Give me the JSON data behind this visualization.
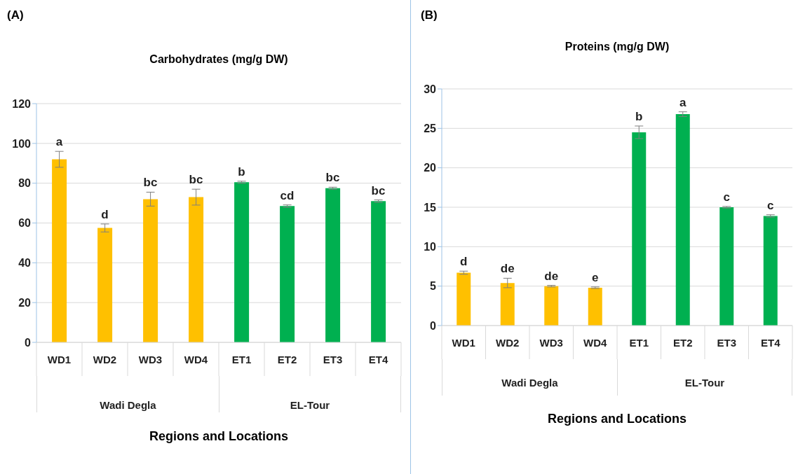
{
  "chart_data": [
    {
      "type": "bar",
      "title": "Carbohydrates (mg/g DW)",
      "xlabel": "Regions and Locations",
      "categories": [
        "WD1",
        "WD2",
        "WD3",
        "WD4",
        "ET1",
        "ET2",
        "ET3",
        "ET4"
      ],
      "values": [
        92,
        57.5,
        72,
        73,
        80.5,
        68.5,
        77.5,
        71
      ],
      "errors": [
        4,
        2,
        3.5,
        4,
        0.5,
        0.6,
        0.5,
        0.6
      ],
      "colors": [
        "#ffc000",
        "#ffc000",
        "#ffc000",
        "#ffc000",
        "#00b050",
        "#00b050",
        "#00b050",
        "#00b050"
      ],
      "ylim": [
        0,
        120
      ],
      "yticks": [
        0,
        20,
        40,
        60,
        80,
        100,
        120
      ],
      "grid": "y",
      "legend": false,
      "annotations": [
        "(A)",
        "Wadi Degla",
        "EL-Tour",
        {
          "text": "a",
          "x": "WD1",
          "y": 92
        },
        {
          "text": "d",
          "x": "WD2",
          "y": 57.5
        },
        {
          "text": "bc",
          "x": "WD3",
          "y": 72
        },
        {
          "text": "bc",
          "x": "WD4",
          "y": 73
        },
        {
          "text": "b",
          "x": "ET1",
          "y": 80.5
        },
        {
          "text": "cd",
          "x": "ET2",
          "y": 68.5
        },
        {
          "text": "bc",
          "x": "ET3",
          "y": 77.5
        },
        {
          "text": "bc",
          "x": "ET4",
          "y": 71
        }
      ]
    },
    {
      "type": "bar",
      "title": "Proteins (mg/g DW)",
      "xlabel": "Regions and Locations",
      "categories": [
        "WD1",
        "WD2",
        "WD3",
        "WD4",
        "ET1",
        "ET2",
        "ET3",
        "ET4"
      ],
      "values": [
        6.7,
        5.4,
        5.0,
        4.8,
        24.5,
        26.8,
        15.0,
        13.9
      ],
      "errors": [
        0.2,
        0.6,
        0.1,
        0.1,
        0.8,
        0.3,
        0.1,
        0.15
      ],
      "colors": [
        "#ffc000",
        "#ffc000",
        "#ffc000",
        "#ffc000",
        "#00b050",
        "#00b050",
        "#00b050",
        "#00b050"
      ],
      "ylim": [
        0,
        30
      ],
      "yticks": [
        0,
        5,
        10,
        15,
        20,
        25,
        30
      ],
      "grid": "y",
      "legend": false,
      "annotations": [
        "(B)",
        "Wadi Degla",
        "EL-Tour",
        {
          "text": "d",
          "x": "WD1",
          "y": 6.7
        },
        {
          "text": "de",
          "x": "WD2",
          "y": 5.4
        },
        {
          "text": "de",
          "x": "WD3",
          "y": 5.0
        },
        {
          "text": "e",
          "x": "WD4",
          "y": 4.8
        },
        {
          "text": "b",
          "x": "ET1",
          "y": 24.5
        },
        {
          "text": "a",
          "x": "ET2",
          "y": 26.8
        },
        {
          "text": "c",
          "x": "ET3",
          "y": 15.0
        },
        {
          "text": "c",
          "x": "ET4",
          "y": 13.9
        }
      ]
    }
  ]
}
